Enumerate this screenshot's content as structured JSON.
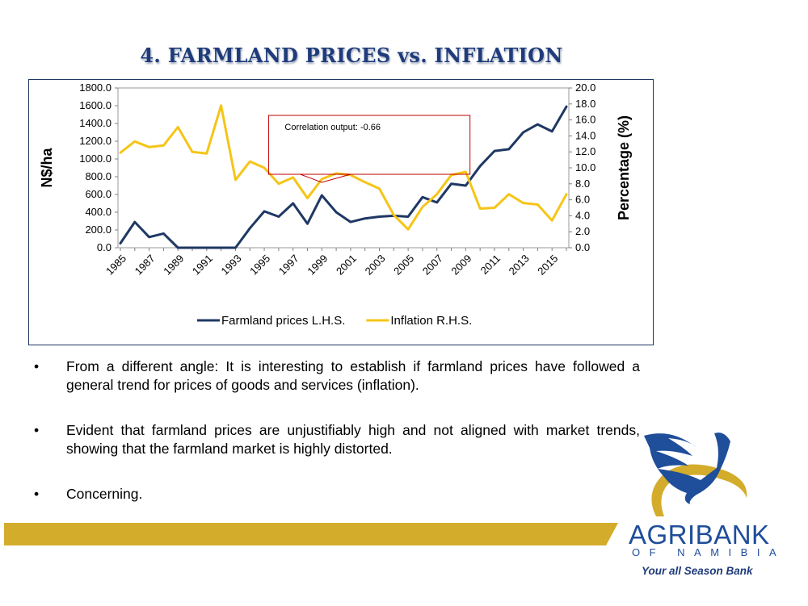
{
  "slide": {
    "title": "4. FARMLAND PRICES vs. INFLATION",
    "bullets": [
      "From a different angle: It is interesting to establish if farmland prices have followed a general trend for prices of goods and services (inflation).",
      "Evident that farmland prices are unjustifiably high and not aligned with market trends, showing that the farmland market is highly distorted.",
      "Concerning."
    ],
    "bullet_symbol": "•"
  },
  "brand": {
    "name": "AGRIBANK",
    "sub": "OF NAMIBIA",
    "tagline": "Your all Season Bank",
    "colors": {
      "navy": "#1f3864",
      "blue": "#1f4e9a",
      "gold": "#d4ac2b"
    }
  },
  "chart_data": {
    "type": "line",
    "x": [
      1985,
      1986,
      1987,
      1988,
      1989,
      1990,
      1991,
      1992,
      1993,
      1994,
      1995,
      1996,
      1997,
      1998,
      1999,
      2000,
      2001,
      2002,
      2003,
      2004,
      2005,
      2006,
      2007,
      2008,
      2009,
      2010,
      2011,
      2012,
      2013,
      2014,
      2015,
      2016
    ],
    "x_tick_labels": [
      "1985",
      "1987",
      "1989",
      "1991",
      "1993",
      "1995",
      "1997",
      "1999",
      "2001",
      "2003",
      "2005",
      "2007",
      "2009",
      "2011",
      "2013",
      "2015"
    ],
    "ylabel": "N$/ha",
    "ylabel_right": "Percentage (%)",
    "ylim": [
      0,
      1800
    ],
    "ylim_right": [
      0,
      20
    ],
    "y_ticks": [
      "0.0",
      "200.0",
      "400.0",
      "600.0",
      "800.0",
      "1000.0",
      "1200.0",
      "1400.0",
      "1600.0",
      "1800.0"
    ],
    "y_ticks_right": [
      "0.0",
      "2.0",
      "4.0",
      "6.0",
      "8.0",
      "10.0",
      "12.0",
      "14.0",
      "16.0",
      "18.0",
      "20.0"
    ],
    "series": [
      {
        "name": "Farmland prices L.H.S.",
        "axis": "left",
        "color": "#1f3864",
        "values": [
          50,
          290,
          120,
          160,
          0,
          0,
          0,
          0,
          0,
          220,
          410,
          350,
          500,
          270,
          590,
          400,
          290,
          330,
          350,
          360,
          350,
          570,
          510,
          720,
          700,
          920,
          1090,
          1110,
          1300,
          1390,
          1310,
          1590
        ]
      },
      {
        "name": "Inflation R.H.S.",
        "axis": "right",
        "color": "#f5c518",
        "values": [
          11.9,
          13.3,
          12.6,
          12.8,
          15.1,
          12.0,
          11.8,
          17.8,
          8.5,
          10.8,
          10.0,
          8.0,
          8.8,
          6.2,
          8.6,
          9.3,
          9.1,
          8.2,
          7.4,
          4.1,
          2.3,
          5.1,
          6.7,
          9.1,
          9.5,
          4.9,
          5.0,
          6.7,
          5.6,
          5.4,
          3.4,
          6.7
        ]
      }
    ],
    "annotation": "Correlation output: -0.66",
    "legend_position": "bottom",
    "grid": false
  }
}
